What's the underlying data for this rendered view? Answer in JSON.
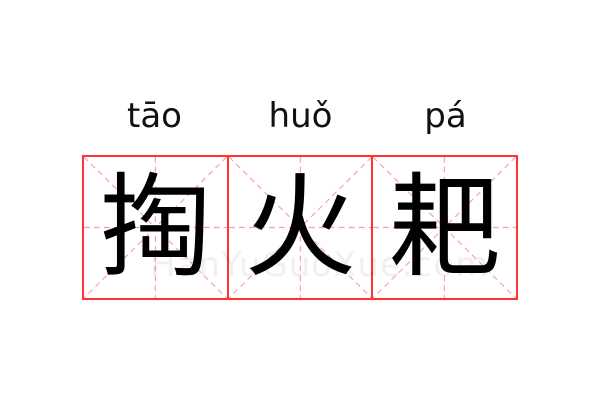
{
  "characters": [
    {
      "pinyin": "tāo",
      "hanzi": "掏"
    },
    {
      "pinyin": "huǒ",
      "hanzi": "火"
    },
    {
      "pinyin": "pá",
      "hanzi": "耙"
    }
  ],
  "watermark": "HanYuGuoXue.com",
  "colors": {
    "border": "#ff3333",
    "guide": "#f8a0a0",
    "text": "#000000"
  }
}
